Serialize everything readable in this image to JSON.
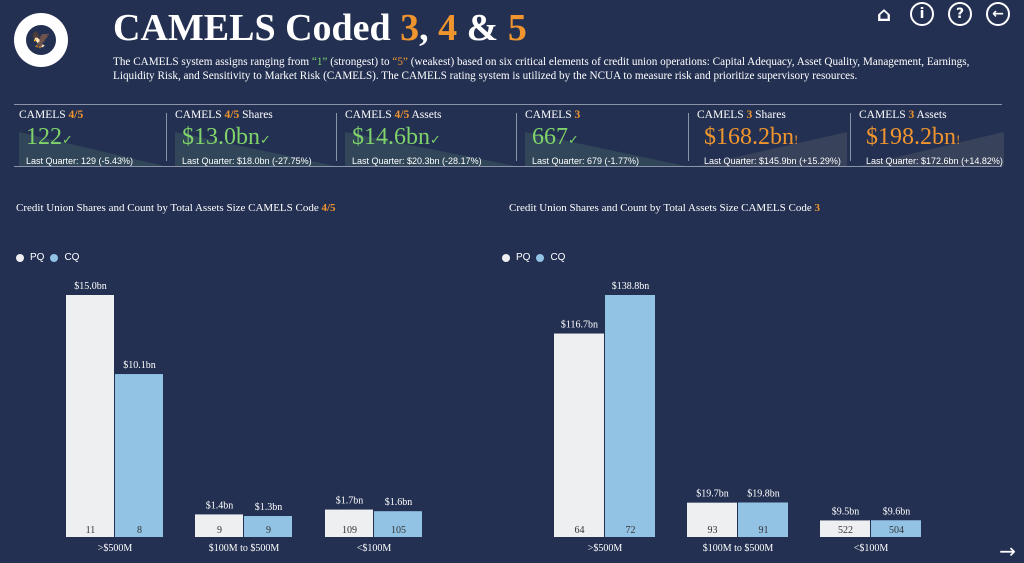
{
  "header": {
    "seal_text": "National Credit Union Administration 1934",
    "title_prefix": "CAMELS Coded ",
    "code_a": "3",
    "comma": ", ",
    "code_b": "4",
    "amp": " & ",
    "code_c": "5",
    "description_1": "The CAMELS system assigns ranging from ",
    "q1": "“1”",
    "description_2": " (strongest) to ",
    "q5": "“5”",
    "description_3": " (weakest) based on six critical elements of credit union operations: Capital Adequacy, Asset Quality, Management, Earnings, Liquidity Risk, and Sensitivity to Market Risk (CAMELS). The CAMELS rating system is utilized by the NCUA to measure risk and prioritize supervisory resources."
  },
  "nav": {
    "home": "⌂",
    "info": "i",
    "help": "?",
    "back": "←",
    "next": "→"
  },
  "kpis": [
    {
      "label": "CAMELS ",
      "code": "4/5",
      "suffix": "",
      "value": "122",
      "status": "✓",
      "last": "Last Quarter: 129 (-5.43%)",
      "color": "green"
    },
    {
      "label": "CAMELS ",
      "code": "4/5",
      "suffix": " Shares",
      "value": "$13.0bn",
      "status": "✓",
      "last": "Last Quarter: $18.0bn (-27.75%)",
      "color": "green"
    },
    {
      "label": "CAMELS ",
      "code": "4/5",
      "suffix": " Assets",
      "value": "$14.6bn",
      "status": "✓",
      "last": "Last Quarter: $20.3bn (-28.17%)",
      "color": "green"
    },
    {
      "label": "CAMELS ",
      "code": "3",
      "suffix": "",
      "value": "667",
      "status": "✓",
      "last": "Last Quarter: 679 (-1.77%)",
      "color": "green"
    },
    {
      "label": "CAMELS ",
      "code": "3",
      "suffix": " Shares",
      "value": "$168.2bn",
      "status": "!",
      "last": "Last Quarter: $145.9bn (+15.29%)",
      "color": "orange"
    },
    {
      "label": "CAMELS ",
      "code": "3",
      "suffix": " Assets",
      "value": "$198.2bn",
      "status": "!",
      "last": "Last Quarter: $172.6bn (+14.82%)",
      "color": "orange"
    }
  ],
  "colors": {
    "background": "#233052",
    "pq": "#eeeff1",
    "cq": "#92c2e4",
    "green": "#7fd36a",
    "orange": "#f0952e"
  },
  "chart_data": [
    {
      "type": "bar",
      "title": "Credit Union Shares and Count by Total Assets Size CAMELS Code ",
      "title_code": "4/5",
      "legend": [
        "PQ",
        "CQ"
      ],
      "legend_placement": "top-left",
      "categories": [
        ">$500M",
        "$100M to $500M",
        "<$100M"
      ],
      "series": [
        {
          "name": "PQ",
          "values": [
            15.0,
            1.4,
            1.7
          ],
          "labels": [
            "$15.0bn",
            "$1.4bn",
            "$1.7bn"
          ],
          "counts": [
            11,
            9,
            109
          ]
        },
        {
          "name": "CQ",
          "values": [
            10.1,
            1.3,
            1.6
          ],
          "labels": [
            "$10.1bn",
            "$1.3bn",
            "$1.6bn"
          ],
          "counts": [
            8,
            9,
            105
          ]
        }
      ]
    },
    {
      "type": "bar",
      "title": "Credit Union Shares and Count by Total Assets Size CAMELS Code ",
      "title_code": "3",
      "legend": [
        "PQ",
        "CQ"
      ],
      "legend_placement": "top-left",
      "categories": [
        ">$500M",
        "$100M to $500M",
        "<$100M"
      ],
      "series": [
        {
          "name": "PQ",
          "values": [
            116.7,
            19.7,
            9.5
          ],
          "labels": [
            "$116.7bn",
            "$19.7bn",
            "$9.5bn"
          ],
          "counts": [
            64,
            93,
            522
          ]
        },
        {
          "name": "CQ",
          "values": [
            138.8,
            19.8,
            9.6
          ],
          "labels": [
            "$138.8bn",
            "$19.8bn",
            "$9.6bn"
          ],
          "counts": [
            72,
            91,
            504
          ]
        }
      ]
    }
  ]
}
